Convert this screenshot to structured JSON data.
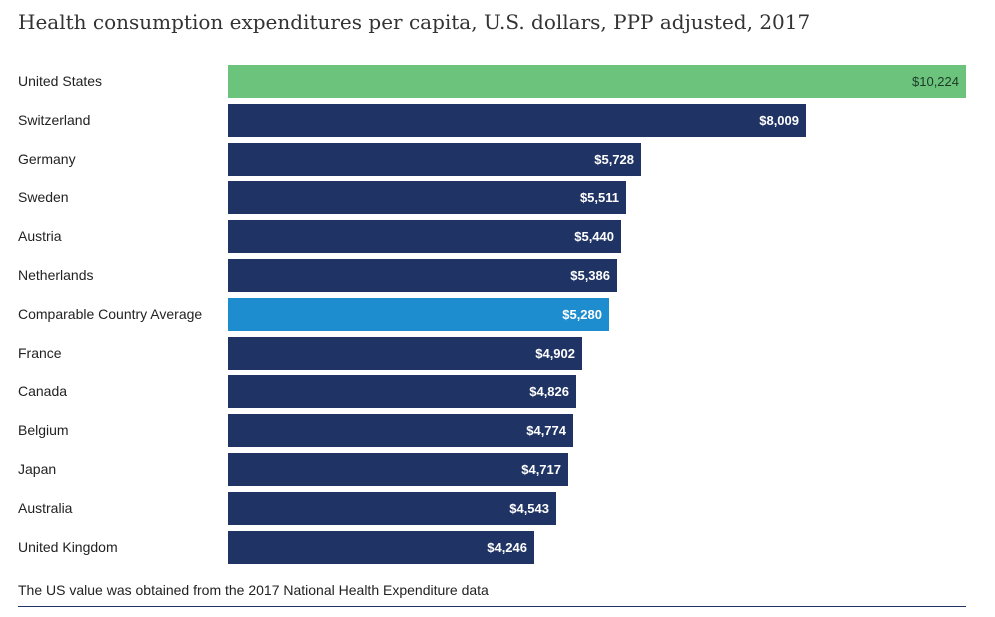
{
  "chart_data": {
    "type": "bar",
    "orientation": "horizontal",
    "title": "Health consumption expenditures per capita, U.S. dollars, PPP adjusted, 2017",
    "categories": [
      "United States",
      "Switzerland",
      "Germany",
      "Sweden",
      "Austria",
      "Netherlands",
      "Comparable Country Average",
      "France",
      "Canada",
      "Belgium",
      "Japan",
      "Australia",
      "United Kingdom"
    ],
    "values": [
      10224,
      8009,
      5728,
      5511,
      5440,
      5386,
      5280,
      4902,
      4826,
      4774,
      4717,
      4543,
      4246
    ],
    "value_labels": [
      "$10,224",
      "$8,009",
      "$5,728",
      "$5,511",
      "$5,440",
      "$5,386",
      "$5,280",
      "$4,902",
      "$4,826",
      "$4,774",
      "$4,717",
      "$4,543",
      "$4,246"
    ],
    "xlim": [
      0,
      10224
    ],
    "grid": false,
    "legend": "none",
    "colors": {
      "default": "#1f3465",
      "United States": "#6cc47c",
      "Comparable Country Average": "#1d8dcf"
    },
    "value_label_colors": {
      "default": "#ffffff",
      "United States": "#1d3a2a"
    }
  },
  "footnote": "The US value was obtained from the 2017 National Health Expenditure data"
}
